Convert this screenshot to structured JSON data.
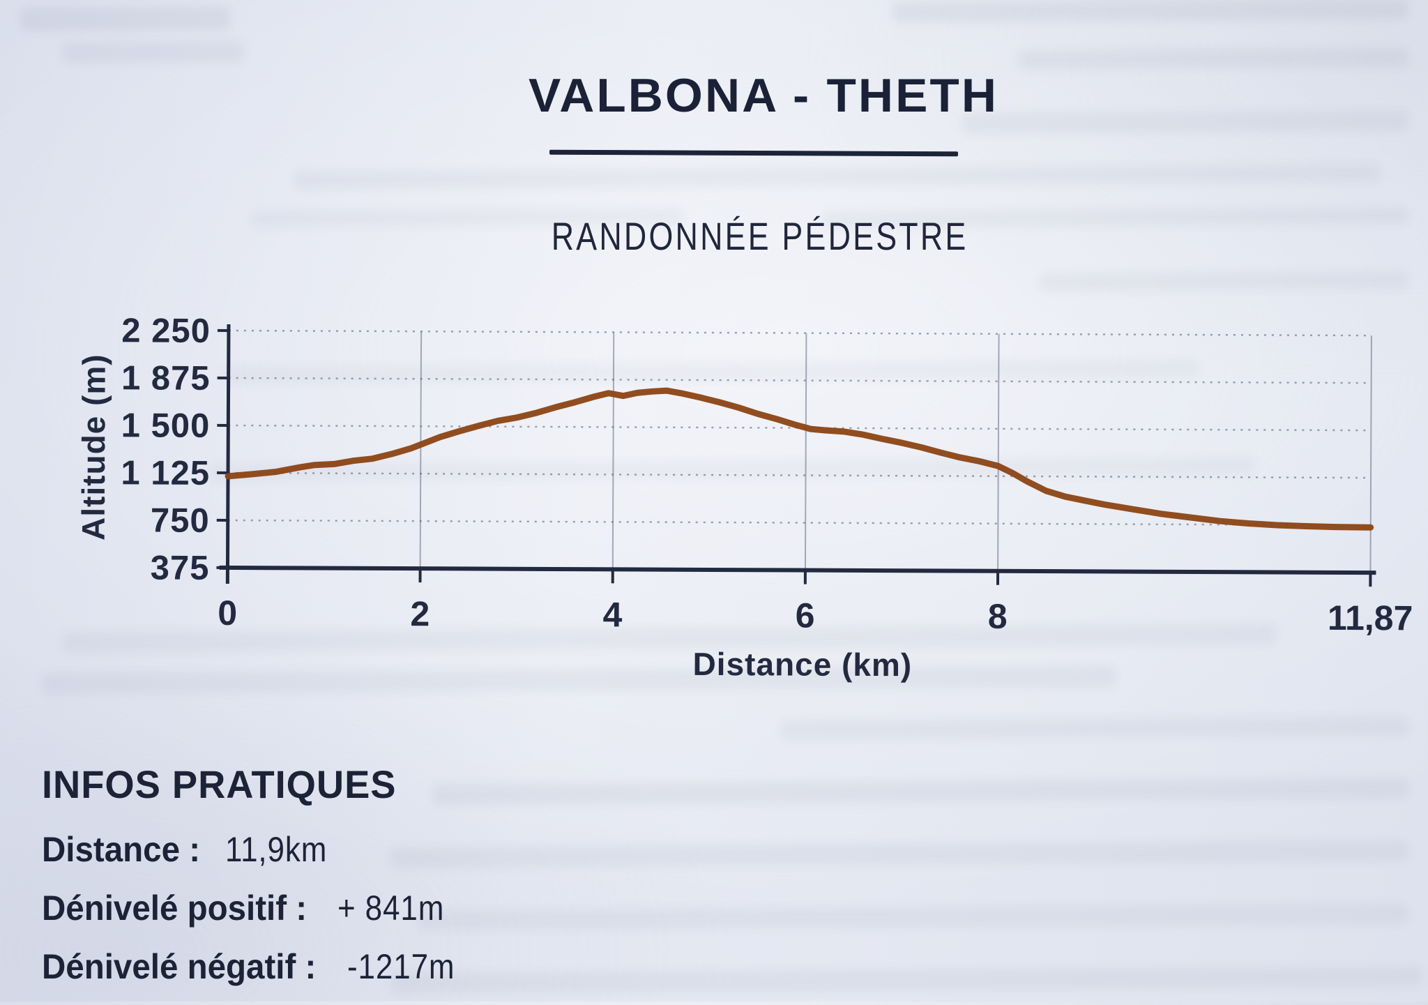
{
  "page": {
    "title": "VALBONA - THETH",
    "subtitle": "RANDONNÉE PÉDESTRE"
  },
  "chart_data": {
    "type": "line",
    "title": "",
    "xlabel": "Distance (km)",
    "ylabel": "Altitude (m)",
    "xlim": [
      0,
      11.87
    ],
    "ylim": [
      375,
      2250
    ],
    "grid": true,
    "legend": "none",
    "line_color": "#8c4616",
    "x_ticks": [
      {
        "value": 0,
        "label": "0"
      },
      {
        "value": 2,
        "label": "2"
      },
      {
        "value": 4,
        "label": "4"
      },
      {
        "value": 6,
        "label": "6"
      },
      {
        "value": 8,
        "label": "8"
      },
      {
        "value": 11.87,
        "label": "11,87"
      }
    ],
    "y_ticks": [
      {
        "value": 375,
        "label": "375"
      },
      {
        "value": 750,
        "label": "750"
      },
      {
        "value": 1125,
        "label": "1 125"
      },
      {
        "value": 1500,
        "label": "1 500"
      },
      {
        "value": 1875,
        "label": "1 875"
      },
      {
        "value": 2250,
        "label": "2 250"
      }
    ],
    "points": [
      [
        0,
        1098
      ],
      [
        0.25,
        1115
      ],
      [
        0.5,
        1135
      ],
      [
        0.75,
        1172
      ],
      [
        0.9,
        1190
      ],
      [
        1.1,
        1198
      ],
      [
        1.3,
        1225
      ],
      [
        1.5,
        1242
      ],
      [
        1.7,
        1280
      ],
      [
        1.9,
        1325
      ],
      [
        2.0,
        1355
      ],
      [
        2.2,
        1415
      ],
      [
        2.4,
        1462
      ],
      [
        2.6,
        1505
      ],
      [
        2.8,
        1545
      ],
      [
        3.0,
        1572
      ],
      [
        3.2,
        1610
      ],
      [
        3.4,
        1655
      ],
      [
        3.6,
        1695
      ],
      [
        3.8,
        1740
      ],
      [
        3.95,
        1768
      ],
      [
        4.1,
        1747
      ],
      [
        4.25,
        1772
      ],
      [
        4.4,
        1783
      ],
      [
        4.55,
        1790
      ],
      [
        4.7,
        1770
      ],
      [
        4.9,
        1737
      ],
      [
        5.1,
        1700
      ],
      [
        5.3,
        1658
      ],
      [
        5.5,
        1610
      ],
      [
        5.7,
        1568
      ],
      [
        5.9,
        1522
      ],
      [
        6.05,
        1492
      ],
      [
        6.2,
        1482
      ],
      [
        6.4,
        1472
      ],
      [
        6.6,
        1448
      ],
      [
        6.8,
        1415
      ],
      [
        7.0,
        1385
      ],
      [
        7.2,
        1350
      ],
      [
        7.4,
        1310
      ],
      [
        7.6,
        1272
      ],
      [
        7.8,
        1243
      ],
      [
        8.0,
        1205
      ],
      [
        8.15,
        1150
      ],
      [
        8.3,
        1085
      ],
      [
        8.5,
        1010
      ],
      [
        8.7,
        965
      ],
      [
        8.9,
        935
      ],
      [
        9.1,
        905
      ],
      [
        9.4,
        868
      ],
      [
        9.7,
        832
      ],
      [
        10.0,
        805
      ],
      [
        10.3,
        778
      ],
      [
        10.6,
        760
      ],
      [
        10.9,
        747
      ],
      [
        11.2,
        740
      ],
      [
        11.5,
        735
      ],
      [
        11.87,
        733
      ]
    ]
  },
  "infos": {
    "heading": "INFOS PRATIQUES",
    "items": [
      {
        "label": "Distance :",
        "value": "11,9km"
      },
      {
        "label": "Dénivelé positif :",
        "value": "+ 841m"
      },
      {
        "label": "Dénivelé négatif :",
        "value": "-1217m"
      }
    ]
  },
  "colors": {
    "ink": "#1d2438",
    "curve": "#8c4616",
    "grid_dotted": "#4e5975",
    "paper": "#e2e6f0"
  }
}
